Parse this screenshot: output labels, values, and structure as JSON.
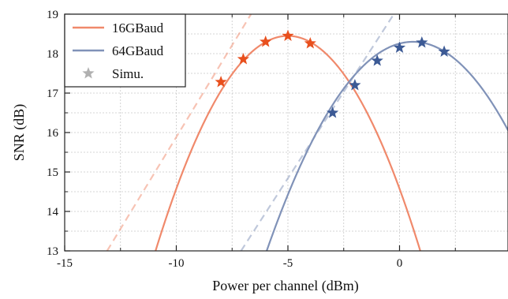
{
  "chart_data": {
    "type": "line",
    "title": "",
    "xlabel": "Power per channel (dBm)",
    "ylabel": "SNR (dB)",
    "xlim": [
      -15,
      5
    ],
    "ylim": [
      13,
      19
    ],
    "x_ticks": [
      -15,
      -10,
      -5,
      0
    ],
    "x_tick_labels": [
      "-15",
      "-10",
      "-5",
      "0"
    ],
    "y_ticks": [
      13,
      14,
      15,
      16,
      17,
      18,
      19
    ],
    "y_tick_labels": [
      "13",
      "14",
      "15",
      "16",
      "17",
      "18",
      "19"
    ],
    "grid": true,
    "legend_position": "top-left",
    "series": [
      {
        "name": "16GBaud",
        "color": "#F0896B",
        "marker_color": "#E8501E",
        "curve": {
          "peak_x": -5,
          "peak_y": 18.45,
          "curvature": 0.155
        },
        "linear_regime": {
          "x": [
            -13.1,
            -6.6
          ],
          "y": [
            13.0,
            19.05
          ]
        },
        "simu_points": [
          {
            "x": -8,
            "y": 17.28
          },
          {
            "x": -7,
            "y": 17.86
          },
          {
            "x": -6,
            "y": 18.3
          },
          {
            "x": -5,
            "y": 18.45
          },
          {
            "x": -4,
            "y": 18.26
          }
        ]
      },
      {
        "name": "64GBaud",
        "color": "#8092B8",
        "marker_color": "#3C5A95",
        "curve": {
          "peak_x": 0.6,
          "peak_y": 18.3,
          "curvature": 0.1235
        },
        "linear_regime": {
          "x": [
            -7.1,
            -0.2
          ],
          "y": [
            13.0,
            19.05
          ]
        },
        "simu_points": [
          {
            "x": -3,
            "y": 16.5
          },
          {
            "x": -2,
            "y": 17.2
          },
          {
            "x": -1,
            "y": 17.82
          },
          {
            "x": 0,
            "y": 18.15
          },
          {
            "x": 1,
            "y": 18.28
          },
          {
            "x": 2,
            "y": 18.05
          }
        ]
      }
    ],
    "legend_entries": [
      {
        "label": "16GBaud",
        "kind": "line",
        "color": "#F0896B"
      },
      {
        "label": "64GBaud",
        "kind": "line",
        "color": "#8092B8"
      },
      {
        "label": "Simu.",
        "kind": "star",
        "color": "#B0B0B0"
      }
    ]
  }
}
